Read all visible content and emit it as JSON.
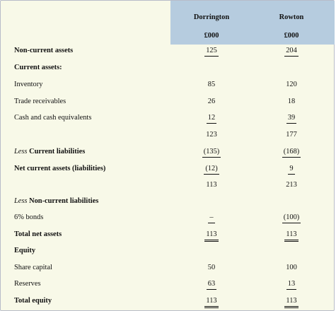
{
  "columns": {
    "company_a": "Dorrington",
    "company_b": "Rowton",
    "unit_a": "£000",
    "unit_b": "£000"
  },
  "rows": [
    {
      "label": "Non-current assets",
      "a": "125",
      "b": "204"
    },
    {
      "label": "Current assets:",
      "a": "",
      "b": ""
    },
    {
      "label": "Inventory",
      "a": "85",
      "b": "120"
    },
    {
      "label": "Trade receivables",
      "a": "26",
      "b": "18"
    },
    {
      "label": "Cash and cash equivalents",
      "a": "12",
      "b": "39"
    },
    {
      "label": "",
      "a": "123",
      "b": "177"
    },
    {
      "label_prefix": "Less",
      "label": "Current liabilities",
      "a": "(135)",
      "b": "(168)"
    },
    {
      "label": "Net current assets (liabilities)",
      "a": "(12)",
      "b": "9"
    },
    {
      "label": "",
      "a": "113",
      "b": "213"
    },
    {
      "label_prefix": "Less",
      "label": "Non-current liabilities",
      "a": "",
      "b": ""
    },
    {
      "label": "6% bonds",
      "a": "–",
      "b": "(100)"
    },
    {
      "label": "Total net assets",
      "a": "113",
      "b": "113"
    },
    {
      "label": "Equity",
      "a": "",
      "b": ""
    },
    {
      "label": "Share capital",
      "a": "50",
      "b": "100"
    },
    {
      "label": "Reserves",
      "a": "63",
      "b": "13"
    },
    {
      "label": "Total equity",
      "a": "113",
      "b": "113"
    }
  ]
}
